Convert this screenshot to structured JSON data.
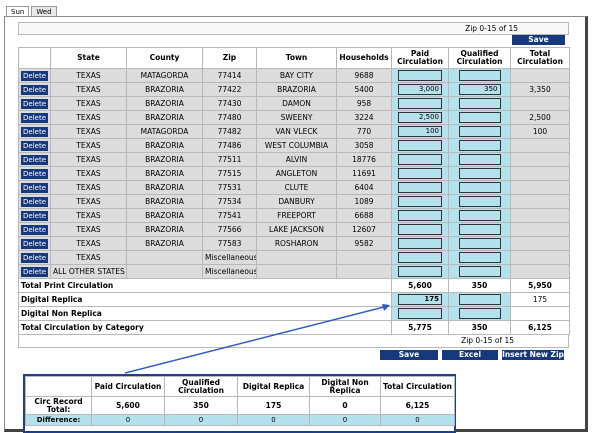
{
  "tabs": [
    "Sun",
    "Wed"
  ],
  "zip_count": "Zip 0-15 of 15",
  "buttons": {
    "save": "Save",
    "excel": "Excel",
    "insert_new_zip": "Insert New Zip",
    "delete": "Delete"
  },
  "columns": {
    "state": "State",
    "county": "County",
    "zip": "Zip",
    "town": "Town",
    "households": "Households",
    "paid": "Paid Circulation",
    "qualified": "Qualified Circulation",
    "total": "Total Circulation"
  },
  "rows": [
    {
      "state": "TEXAS",
      "county": "MATAGORDA",
      "zip": "77414",
      "town": "BAY CITY",
      "households": "9688",
      "paid": "",
      "qualified": "",
      "total": ""
    },
    {
      "state": "TEXAS",
      "county": "BRAZORIA",
      "zip": "77422",
      "town": "BRAZORIA",
      "households": "5400",
      "paid": "3,000",
      "qualified": "350",
      "total": "3,350"
    },
    {
      "state": "TEXAS",
      "county": "BRAZORIA",
      "zip": "77430",
      "town": "DAMON",
      "households": "958",
      "paid": "",
      "qualified": "",
      "total": ""
    },
    {
      "state": "TEXAS",
      "county": "BRAZORIA",
      "zip": "77480",
      "town": "SWEENY",
      "households": "3224",
      "paid": "2,500",
      "qualified": "",
      "total": "2,500"
    },
    {
      "state": "TEXAS",
      "county": "MATAGORDA",
      "zip": "77482",
      "town": "VAN VLECK",
      "households": "770",
      "paid": "100",
      "qualified": "",
      "total": "100"
    },
    {
      "state": "TEXAS",
      "county": "BRAZORIA",
      "zip": "77486",
      "town": "WEST COLUMBIA",
      "households": "3058",
      "paid": "",
      "qualified": "",
      "total": ""
    },
    {
      "state": "TEXAS",
      "county": "BRAZORIA",
      "zip": "77511",
      "town": "ALVIN",
      "households": "18776",
      "paid": "",
      "qualified": "",
      "total": ""
    },
    {
      "state": "TEXAS",
      "county": "BRAZORIA",
      "zip": "77515",
      "town": "ANGLETON",
      "households": "11691",
      "paid": "",
      "qualified": "",
      "total": ""
    },
    {
      "state": "TEXAS",
      "county": "BRAZORIA",
      "zip": "77531",
      "town": "CLUTE",
      "households": "6404",
      "paid": "",
      "qualified": "",
      "total": ""
    },
    {
      "state": "TEXAS",
      "county": "BRAZORIA",
      "zip": "77534",
      "town": "DANBURY",
      "households": "1089",
      "paid": "",
      "qualified": "",
      "total": ""
    },
    {
      "state": "TEXAS",
      "county": "BRAZORIA",
      "zip": "77541",
      "town": "FREEPORT",
      "households": "6688",
      "paid": "",
      "qualified": "",
      "total": ""
    },
    {
      "state": "TEXAS",
      "county": "BRAZORIA",
      "zip": "77566",
      "town": "LAKE JACKSON",
      "households": "12607",
      "paid": "",
      "qualified": "",
      "total": ""
    },
    {
      "state": "TEXAS",
      "county": "BRAZORIA",
      "zip": "77583",
      "town": "ROSHARON",
      "households": "9582",
      "paid": "",
      "qualified": "",
      "total": ""
    },
    {
      "state": "TEXAS",
      "county": "",
      "zip": "Miscellaneous",
      "town": "",
      "households": "",
      "paid": "",
      "qualified": "",
      "total": ""
    },
    {
      "state": "ALL OTHER STATES",
      "county": "",
      "zip": "Miscellaneous",
      "town": "",
      "households": "",
      "paid": "",
      "qualified": "",
      "total": ""
    }
  ],
  "totals": {
    "print": {
      "label": "Total Print Circulation",
      "paid": "5,600",
      "qualified": "350",
      "total": "5,950"
    },
    "digital_replica": {
      "label": "Digital Replica",
      "paid": "175",
      "total": "175"
    },
    "digital_non_replica": {
      "label": "Digital Non Replica"
    },
    "by_category": {
      "label": "Total Circulation by Category",
      "paid": "5,775",
      "qualified": "350",
      "total": "6,125"
    }
  },
  "summary": {
    "headers": [
      "Paid Circulation",
      "Qualified Circulation",
      "Digital Replica",
      "Digital Non Replica",
      "Total Circulation"
    ],
    "circ_record_label": "Circ Record Total:",
    "circ_record": [
      "5,600",
      "350",
      "175",
      "0",
      "6,125"
    ],
    "difference_label": "Difference:",
    "difference": [
      "0",
      "0",
      "0",
      "0",
      "0"
    ]
  },
  "colors": {
    "button": "#17387c",
    "cyan": "#b3e1ec",
    "row_gray": "#dcdcdc"
  }
}
